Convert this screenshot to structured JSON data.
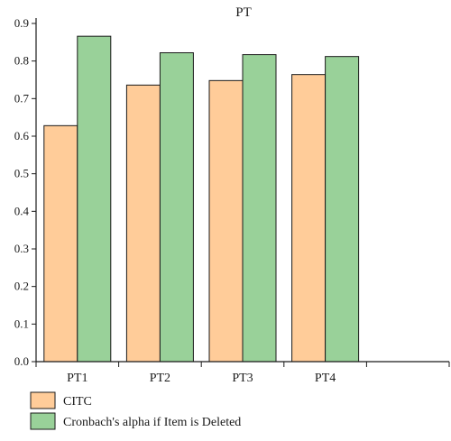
{
  "chart_data": {
    "type": "bar",
    "title": "PT",
    "xlabel": "",
    "ylabel": "",
    "categories": [
      "PT1",
      "PT2",
      "PT3",
      "PT4"
    ],
    "x_slots": 5,
    "series": [
      {
        "name": "CITC",
        "values": [
          0.628,
          0.736,
          0.748,
          0.764
        ],
        "color": "#ffcc99"
      },
      {
        "name": "Cronbach's alpha if Item is Deleted",
        "values": [
          0.866,
          0.822,
          0.817,
          0.812
        ],
        "color": "#99d199"
      }
    ],
    "ylim": [
      0,
      0.9
    ],
    "yticks": [
      "0.0",
      "0.1",
      "0.2",
      "0.3",
      "0.4",
      "0.5",
      "0.6",
      "0.7",
      "0.8",
      "0.9"
    ],
    "grid": false,
    "legend_position": "bottom-left",
    "colors": {
      "axis": "#1a1a1a",
      "bar_stroke": "#1a1a1a"
    }
  }
}
